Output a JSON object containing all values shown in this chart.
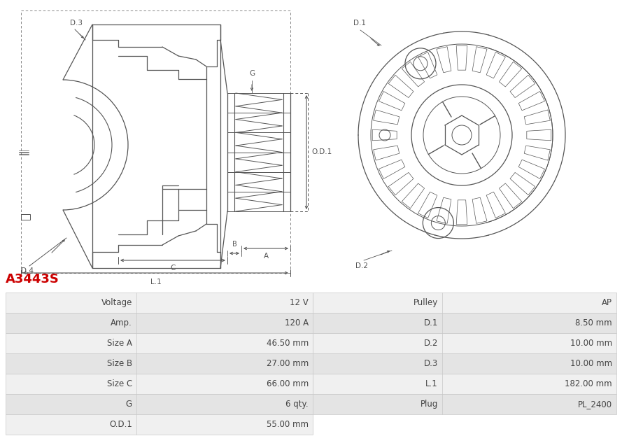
{
  "title": "A3443S",
  "title_color": "#cc0000",
  "bg_color": "#ffffff",
  "draw_color": "#555555",
  "dim_color": "#555555",
  "table_rows": [
    [
      "Voltage",
      "12 V",
      "Pulley",
      "AP"
    ],
    [
      "Amp.",
      "120 A",
      "D.1",
      "8.50 mm"
    ],
    [
      "Size A",
      "46.50 mm",
      "D.2",
      "10.00 mm"
    ],
    [
      "Size B",
      "27.00 mm",
      "D.3",
      "10.00 mm"
    ],
    [
      "Size C",
      "66.00 mm",
      "L.1",
      "182.00 mm"
    ],
    [
      "G",
      "6 qty.",
      "Plug",
      "PL_2400"
    ],
    [
      "O.D.1",
      "55.00 mm",
      "",
      ""
    ]
  ],
  "row_bg_0": "#f0f0f0",
  "row_bg_1": "#e4e4e4",
  "cell_border": "#c8c8c8",
  "text_color": "#444444",
  "font_size": 8.5,
  "title_font_size": 13
}
